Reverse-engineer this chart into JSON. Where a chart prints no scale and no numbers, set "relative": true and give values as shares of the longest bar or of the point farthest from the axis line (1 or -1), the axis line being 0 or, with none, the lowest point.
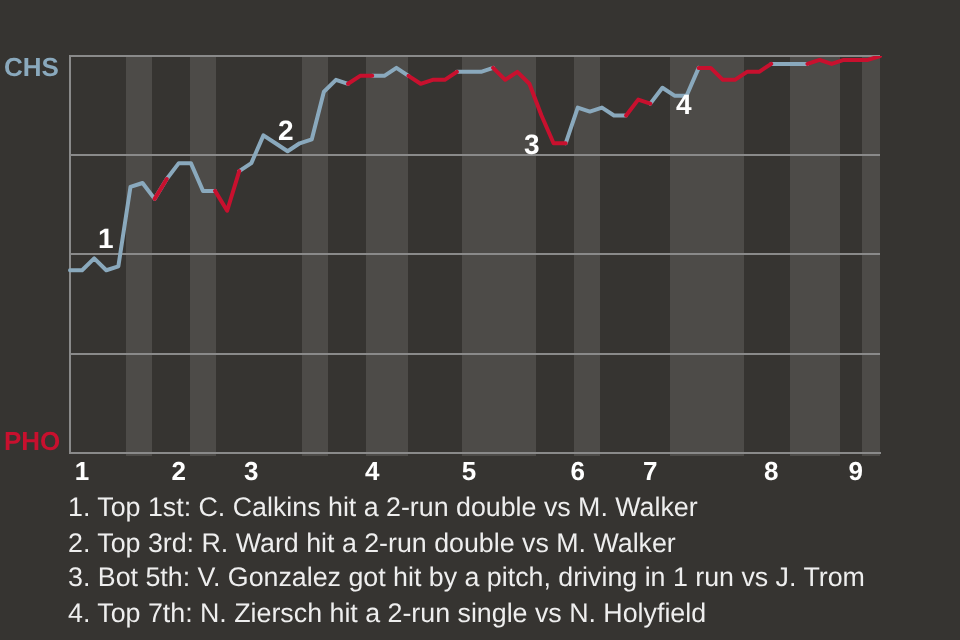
{
  "chart_data": {
    "type": "line",
    "relative": true,
    "categories": [
      null,
      "1",
      null,
      null,
      null,
      null,
      null,
      null,
      null,
      "2",
      null,
      null,
      null,
      null,
      null,
      "3",
      null,
      null,
      null,
      null,
      null,
      null,
      null,
      null,
      null,
      "4",
      null,
      null,
      null,
      null,
      null,
      null,
      null,
      "5",
      null,
      null,
      null,
      null,
      null,
      null,
      null,
      null,
      "6",
      null,
      null,
      null,
      null,
      null,
      "7",
      null,
      null,
      null,
      null,
      null,
      null,
      null,
      null,
      null,
      "8",
      null,
      null,
      null,
      null,
      null,
      null,
      "9",
      null,
      null
    ],
    "series": [
      {
        "color": "#8aa9bd",
        "values": [
          0.46,
          0.46,
          0.49,
          0.46,
          0.47,
          0.67,
          0.68,
          0.64,
          0.69,
          0.73,
          0.73,
          0.66,
          0.66,
          null,
          0.71,
          0.73,
          0.8,
          0.78,
          0.76,
          0.78,
          0.79,
          0.91,
          0.94,
          0.93,
          null,
          0.95,
          0.95,
          0.97,
          0.95,
          null,
          null,
          null,
          0.96,
          0.96,
          0.96,
          0.97,
          null,
          null,
          null,
          null,
          null,
          0.78,
          0.87,
          0.86,
          0.87,
          0.85,
          0.85,
          null,
          0.88,
          0.92,
          0.9,
          0.9,
          0.97,
          null,
          null,
          null,
          null,
          null,
          0.98,
          0.98,
          0.98,
          0.98,
          null,
          null,
          null,
          null,
          null,
          null
        ]
      },
      {
        "color": "#c8102e",
        "values": [
          null,
          null,
          null,
          null,
          null,
          null,
          null,
          0.64,
          0.69,
          null,
          null,
          null,
          0.66,
          0.61,
          0.71,
          null,
          null,
          null,
          null,
          null,
          null,
          null,
          null,
          0.93,
          0.95,
          0.95,
          null,
          null,
          0.95,
          0.93,
          0.94,
          0.94,
          0.96,
          null,
          null,
          0.97,
          0.94,
          0.96,
          0.93,
          0.85,
          0.78,
          0.78,
          null,
          null,
          null,
          null,
          0.85,
          0.89,
          0.88,
          null,
          null,
          null,
          0.97,
          0.97,
          0.94,
          0.94,
          0.96,
          0.96,
          0.98,
          null,
          null,
          0.98,
          0.99,
          0.98,
          0.99,
          0.99,
          0.99,
          1
        ]
      }
    ],
    "grid": "y",
    "marker": "none",
    "annotations": [
      "CHS",
      "PHO",
      "1",
      "2",
      "3",
      "4",
      "1. Top 1st: C. Calkins hit a 2-run double vs M. Walker",
      "2. Top 3rd: R. Ward hit a 2-run double vs M. Walker",
      "3. Bot 5th: V. Gonzalez got hit by a pitch, driving in 1 run vs J. Trom",
      "4. Top 7th: N. Ziersch hit a 2-run single vs N. Holyfield"
    ]
  }
}
